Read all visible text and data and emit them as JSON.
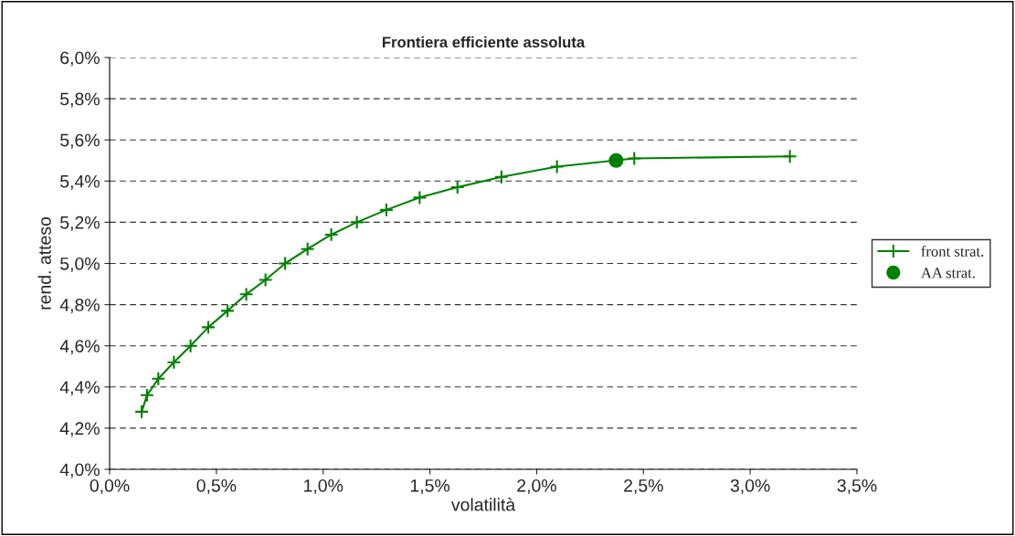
{
  "chart_data": {
    "type": "line",
    "title": "Frontiera efficiente assoluta",
    "xlabel": "volatilità",
    "ylabel": "rend. atteso",
    "series": [
      {
        "name": "front strat.",
        "color": "#008000",
        "marker": "cross",
        "x": [
          0.15,
          0.175,
          0.228,
          0.301,
          0.379,
          0.462,
          0.552,
          0.64,
          0.73,
          0.822,
          0.927,
          1.038,
          1.158,
          1.296,
          1.452,
          1.629,
          1.835,
          2.095,
          2.457,
          3.186
        ],
        "values": [
          4.28,
          4.36,
          4.44,
          4.52,
          4.6,
          4.69,
          4.77,
          4.85,
          4.92,
          5.0,
          5.07,
          5.14,
          5.2,
          5.26,
          5.32,
          5.37,
          5.42,
          5.47,
          5.51,
          5.52
        ]
      },
      {
        "name": "AA strat.",
        "type": "scatter",
        "color": "#008000",
        "marker": "circle",
        "x": [
          2.372
        ],
        "values": [
          5.5
        ]
      }
    ],
    "xlim": [
      0,
      3.5
    ],
    "xticks": [
      {
        "value": 0,
        "label": "0,0%"
      },
      {
        "value": 0.5,
        "label": "0,5%"
      },
      {
        "value": 1,
        "label": "1,0%"
      },
      {
        "value": 1.5,
        "label": "1,5%"
      },
      {
        "value": 2,
        "label": "2,0%"
      },
      {
        "value": 2.5,
        "label": "2,5%"
      },
      {
        "value": 3,
        "label": "3,0%"
      },
      {
        "value": 3.5,
        "label": "3,5%"
      }
    ],
    "ylim": [
      4,
      6
    ],
    "yticks": [
      {
        "value": 4,
        "label": "4,0%"
      },
      {
        "value": 4.2,
        "label": "4,2%"
      },
      {
        "value": 4.4,
        "label": "4,4%"
      },
      {
        "value": 4.6,
        "label": "4,6%"
      },
      {
        "value": 4.8,
        "label": "4,8%"
      },
      {
        "value": 5,
        "label": "5,0%"
      },
      {
        "value": 5.2,
        "label": "5,2%"
      },
      {
        "value": 5.4,
        "label": "5,4%"
      },
      {
        "value": 5.6,
        "label": "5,6%"
      },
      {
        "value": 5.8,
        "label": "5,8%"
      },
      {
        "value": 6,
        "label": "6,0%"
      }
    ],
    "grid": "y",
    "legend": "right"
  }
}
